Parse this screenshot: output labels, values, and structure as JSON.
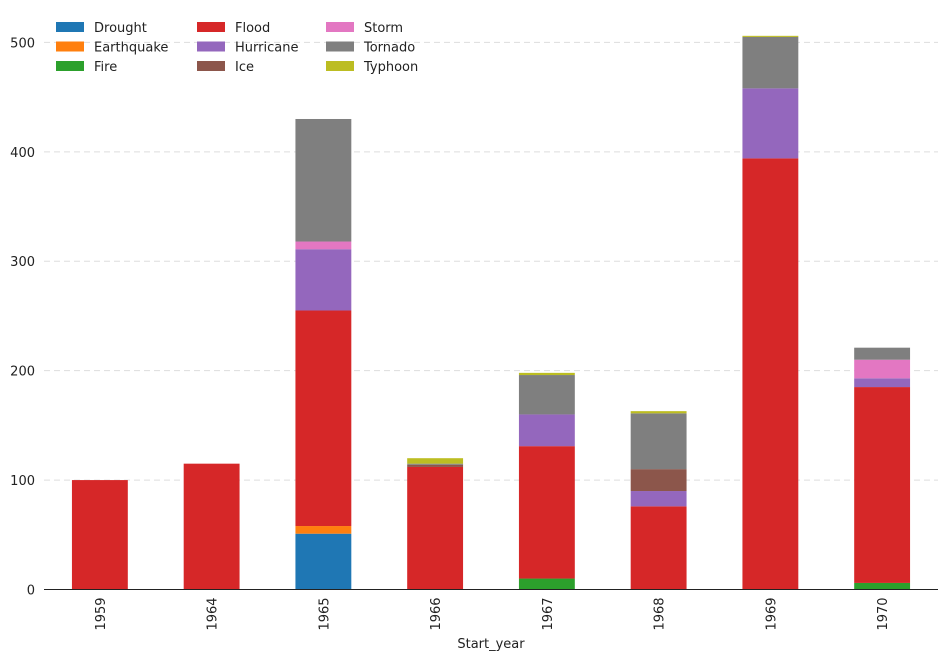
{
  "chart_data": {
    "type": "bar",
    "stacked": true,
    "title": "",
    "xlabel": "Start_year",
    "ylabel": "",
    "ylim": [
      0,
      510
    ],
    "yticks": [
      0,
      100,
      200,
      300,
      400,
      500
    ],
    "grid": "y-dashed",
    "legend_position": "top-left",
    "categories": [
      "1959",
      "1964",
      "1965",
      "1966",
      "1967",
      "1968",
      "1969",
      "1970"
    ],
    "series": [
      {
        "name": "Drought",
        "color": "#1f77b4",
        "values": [
          0,
          0,
          51,
          0,
          0,
          0,
          0,
          0
        ]
      },
      {
        "name": "Earthquake",
        "color": "#ff7f0e",
        "values": [
          0,
          0,
          7,
          0,
          0,
          0,
          0,
          0
        ]
      },
      {
        "name": "Fire",
        "color": "#2ca02c",
        "values": [
          0,
          0,
          0,
          0,
          10,
          0,
          0,
          6
        ]
      },
      {
        "name": "Flood",
        "color": "#d62728",
        "values": [
          100,
          115,
          197,
          112,
          121,
          76,
          394,
          179
        ]
      },
      {
        "name": "Hurricane",
        "color": "#9467bd",
        "values": [
          0,
          0,
          56,
          0,
          29,
          14,
          64,
          8
        ]
      },
      {
        "name": "Ice",
        "color": "#8c564b",
        "values": [
          0,
          0,
          0,
          2,
          0,
          20,
          0,
          0
        ]
      },
      {
        "name": "Storm",
        "color": "#e377c2",
        "values": [
          0,
          0,
          7,
          0,
          0,
          0,
          0,
          17
        ]
      },
      {
        "name": "Tornado",
        "color": "#7f7f7f",
        "values": [
          0,
          0,
          112,
          1,
          36,
          51,
          47,
          11
        ]
      },
      {
        "name": "Typhoon",
        "color": "#bcbd22",
        "values": [
          0,
          0,
          0,
          5,
          2,
          2,
          1,
          0
        ]
      }
    ]
  }
}
